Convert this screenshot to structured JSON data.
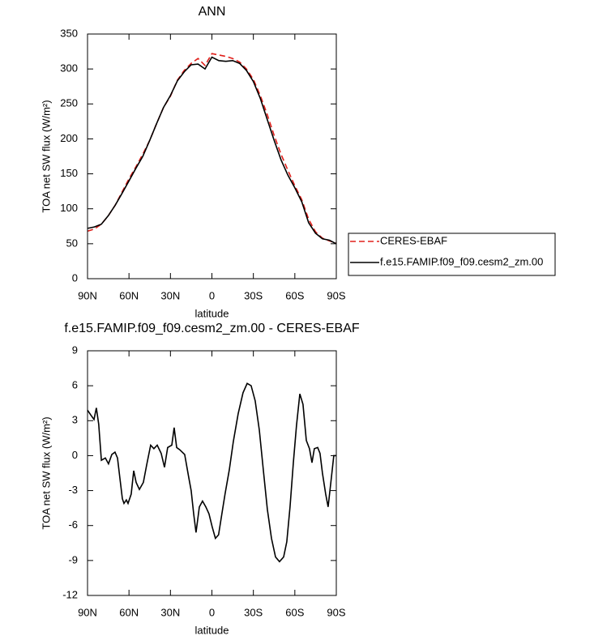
{
  "chart_data": [
    {
      "type": "line",
      "title": "ANN",
      "xlabel": "latitude",
      "ylabel": "TOA net SW flux (W/m²)",
      "x": [
        90,
        85,
        80,
        75,
        70,
        65,
        60,
        55,
        50,
        45,
        40,
        35,
        30,
        25,
        20,
        15,
        10,
        5,
        0,
        -5,
        -10,
        -15,
        -20,
        -25,
        -30,
        -35,
        -40,
        -45,
        -50,
        -55,
        -60,
        -65,
        -70,
        -75,
        -80,
        -85,
        -90
      ],
      "series": [
        {
          "name": "CERES-EBAF",
          "color": "#e0201b",
          "style": "dashed",
          "values": [
            68,
            71,
            78,
            90,
            105,
            124,
            143,
            160,
            178,
            198,
            222,
            245,
            261,
            284,
            298,
            308,
            315,
            305,
            322,
            320,
            318,
            315,
            310,
            300,
            285,
            262,
            235,
            205,
            178,
            155,
            133,
            113,
            85,
            67,
            58,
            54,
            51
          ]
        },
        {
          "name": "f.e15.FAMIP.f09_f09.cesm2_zm.00",
          "color": "#000000",
          "style": "solid",
          "values": [
            72,
            74,
            78,
            90,
            105,
            122,
            140,
            158,
            175,
            198,
            222,
            245,
            262,
            283,
            296,
            306,
            307,
            300,
            317,
            312,
            311,
            312,
            308,
            298,
            282,
            258,
            228,
            198,
            170,
            148,
            130,
            110,
            80,
            65,
            57,
            55,
            50
          ]
        }
      ],
      "xlim": [
        90,
        -90
      ],
      "xticks": [
        {
          "value": 90,
          "label": "90N"
        },
        {
          "value": 60,
          "label": "60N"
        },
        {
          "value": 30,
          "label": "30N"
        },
        0,
        {
          "value": -30,
          "label": "30S"
        },
        {
          "value": -60,
          "label": "60S"
        },
        {
          "value": -90,
          "label": "90S"
        }
      ],
      "ylim": [
        0,
        350
      ],
      "yticks": [
        0,
        50,
        100,
        150,
        200,
        250,
        300,
        350
      ],
      "legend": "right"
    },
    {
      "type": "line",
      "title": "f.e15.FAMIP.f09_f09.cesm2_zm.00 - CERES-EBAF",
      "xlabel": "latitude",
      "ylabel": "TOA net SW flux (W/m²)",
      "x": [
        90,
        87.7,
        85.3,
        83.6,
        81.9,
        80,
        77.1,
        74.8,
        72.4,
        70.1,
        68.3,
        66.6,
        64.8,
        63.6,
        61.9,
        60.7,
        58.4,
        56.6,
        54.8,
        52.5,
        49.6,
        47.2,
        44.3,
        42,
        39.6,
        36.7,
        34.3,
        32,
        29,
        27.3,
        25.5,
        23.2,
        19.7,
        16.7,
        15,
        13.2,
        11.5,
        9.1,
        6.8,
        4.4,
        2.1,
        -0.2,
        -2.5,
        -4.8,
        -7.2,
        -9.5,
        -12.6,
        -15.5,
        -19,
        -22.5,
        -25.5,
        -28.4,
        -31.3,
        -34.3,
        -37.2,
        -40.1,
        -43.1,
        -46,
        -48.9,
        -51.9,
        -54.2,
        -56.5,
        -58.9,
        -61.2,
        -63.6,
        -65.9,
        -68.3,
        -70.6,
        -72.4,
        -74.1,
        -76.5,
        -78.2,
        -80,
        -82.3,
        -84.1,
        -86.4,
        -88.2,
        -90
      ],
      "values": [
        3.9,
        3.5,
        3.1,
        4.1,
        2.7,
        -0.4,
        -0.2,
        -0.7,
        0.1,
        0.3,
        -0.2,
        -1.9,
        -3.7,
        -4.1,
        -3.8,
        -4.1,
        -3.3,
        -1.3,
        -2.3,
        -2.9,
        -2.3,
        -0.8,
        0.9,
        0.6,
        0.9,
        0.2,
        -1,
        0.7,
        0.9,
        2.4,
        0.7,
        0.5,
        0.1,
        -1.9,
        -3,
        -5,
        -6.6,
        -4.4,
        -3.9,
        -4.4,
        -5,
        -6.1,
        -7.1,
        -6.8,
        -5,
        -3.3,
        -1.2,
        1.2,
        3.6,
        5.4,
        6.2,
        6,
        4.7,
        2.2,
        -1.2,
        -4.6,
        -7.1,
        -8.7,
        -9.1,
        -8.7,
        -7.4,
        -4.4,
        -0.6,
        2.6,
        5.3,
        4.4,
        1.3,
        0.6,
        -0.6,
        0.6,
        0.7,
        0.2,
        -1.5,
        -3.3,
        -4.4,
        -1.9,
        0,
        0
      ],
      "color": "#000000",
      "xlim": [
        90,
        -90
      ],
      "xticks": [
        {
          "value": 90,
          "label": "90N"
        },
        {
          "value": 60,
          "label": "60N"
        },
        {
          "value": 30,
          "label": "30N"
        },
        0,
        {
          "value": -30,
          "label": "30S"
        },
        {
          "value": -60,
          "label": "60S"
        },
        {
          "value": -90,
          "label": "90S"
        }
      ],
      "ylim": [
        -12,
        9
      ],
      "yticks": [
        -12,
        -9,
        -6,
        -3,
        0,
        3,
        6,
        9
      ]
    }
  ]
}
